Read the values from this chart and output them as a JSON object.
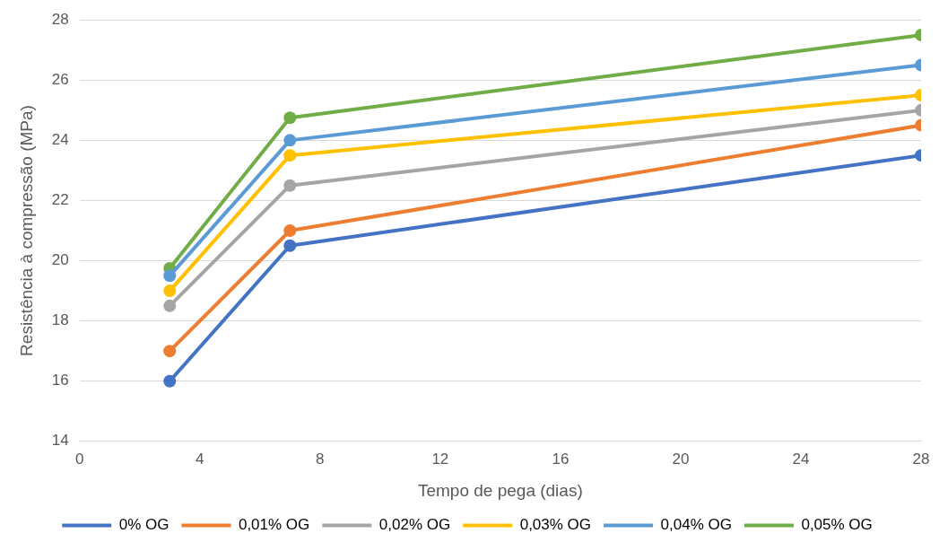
{
  "chart_data": {
    "type": "line",
    "xlabel": "Tempo de pega (dias)",
    "ylabel": "Resistência à compressão (MPa)",
    "x": [
      3,
      7,
      28
    ],
    "xlim": [
      0,
      28
    ],
    "xticks": [
      0,
      4,
      8,
      12,
      16,
      20,
      24,
      28
    ],
    "ylim": [
      14,
      28
    ],
    "yticks": [
      14,
      16,
      18,
      20,
      22,
      24,
      26,
      28
    ],
    "grid": "y",
    "legend": "bottom",
    "marker": "circle",
    "line_style": "solid",
    "series": [
      {
        "name": "0% OG",
        "color": "#4472c4",
        "values": [
          16,
          20.5,
          23.5
        ]
      },
      {
        "name": "0,01% OG",
        "color": "#ed7d31",
        "values": [
          17,
          21,
          24.5
        ]
      },
      {
        "name": "0,02% OG",
        "color": "#a5a5a5",
        "values": [
          18.5,
          22.5,
          25
        ]
      },
      {
        "name": "0,03% OG",
        "color": "#ffc000",
        "values": [
          19,
          23.5,
          25.5
        ]
      },
      {
        "name": "0,04% OG",
        "color": "#5b9bd5",
        "values": [
          19.5,
          24,
          26.5
        ]
      },
      {
        "name": "0,05% OG",
        "color": "#70ad47",
        "values": [
          19.75,
          24.75,
          27.5
        ]
      }
    ]
  }
}
